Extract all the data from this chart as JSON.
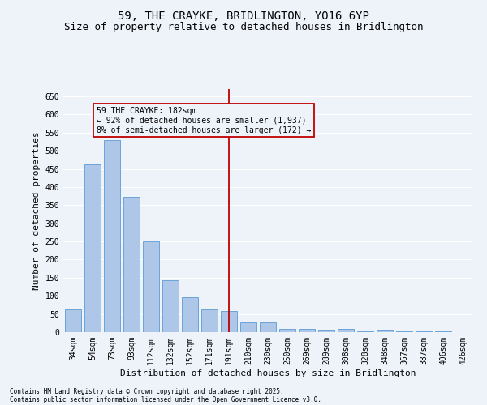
{
  "title_line1": "59, THE CRAYKE, BRIDLINGTON, YO16 6YP",
  "title_line2": "Size of property relative to detached houses in Bridlington",
  "xlabel": "Distribution of detached houses by size in Bridlington",
  "ylabel": "Number of detached properties",
  "categories": [
    "34sqm",
    "54sqm",
    "73sqm",
    "93sqm",
    "112sqm",
    "132sqm",
    "152sqm",
    "171sqm",
    "191sqm",
    "210sqm",
    "230sqm",
    "250sqm",
    "269sqm",
    "289sqm",
    "308sqm",
    "328sqm",
    "348sqm",
    "367sqm",
    "387sqm",
    "406sqm",
    "426sqm"
  ],
  "values": [
    63,
    463,
    530,
    372,
    250,
    142,
    95,
    63,
    57,
    27,
    27,
    8,
    10,
    5,
    8,
    3,
    5,
    3,
    3,
    2,
    1
  ],
  "bar_color": "#aec6e8",
  "bar_edge_color": "#5b9bd5",
  "vline_x": 8,
  "vline_color": "#c00000",
  "annotation_title": "59 THE CRAYKE: 182sqm",
  "annotation_line1": "← 92% of detached houses are smaller (1,937)",
  "annotation_line2": "8% of semi-detached houses are larger (172) →",
  "annotation_box_color": "#c00000",
  "ylim": [
    0,
    670
  ],
  "yticks": [
    0,
    50,
    100,
    150,
    200,
    250,
    300,
    350,
    400,
    450,
    500,
    550,
    600,
    650
  ],
  "footnote1": "Contains HM Land Registry data © Crown copyright and database right 2025.",
  "footnote2": "Contains public sector information licensed under the Open Government Licence v3.0.",
  "bg_color": "#eef2f9",
  "grid_color": "#ffffff",
  "title_fontsize": 10,
  "subtitle_fontsize": 9,
  "tick_fontsize": 7,
  "label_fontsize": 8,
  "annotation_fontsize": 7,
  "footnote_fontsize": 5.5
}
